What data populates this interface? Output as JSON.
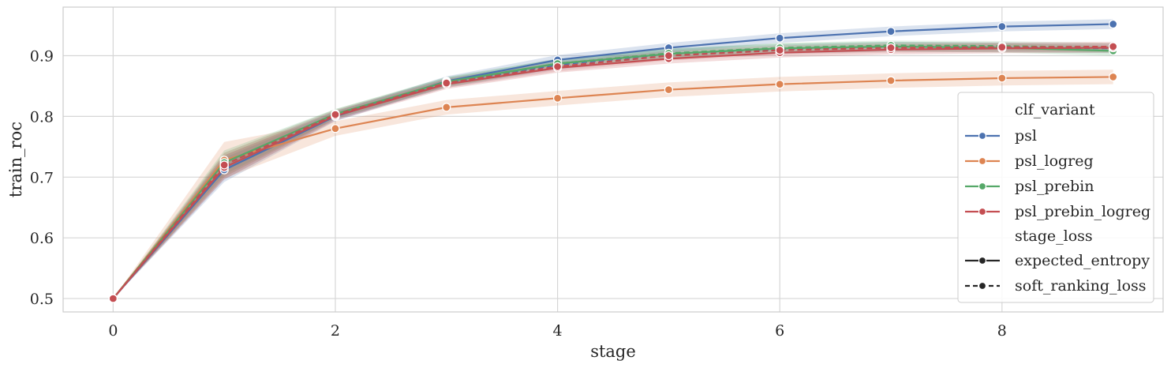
{
  "chart_data": {
    "type": "line",
    "xlabel": "stage",
    "ylabel": "train_roc",
    "xlim": [
      -0.45,
      9.45
    ],
    "ylim": [
      0.478,
      0.98
    ],
    "xticks": [
      0,
      2,
      4,
      6,
      8
    ],
    "xtick_labels": [
      "0",
      "2",
      "4",
      "6",
      "8"
    ],
    "yticks": [
      0.5,
      0.6,
      0.7,
      0.8,
      0.9
    ],
    "ytick_labels": [
      "0.5",
      "0.6",
      "0.7",
      "0.8",
      "0.9"
    ],
    "grid": true,
    "legend_position": "right",
    "legend": {
      "hue_title": "clf_variant",
      "style_title": "stage_loss",
      "style_entries": [
        {
          "label": "expected_entropy",
          "dash": "solid"
        },
        {
          "label": "soft_ranking_loss",
          "dash": "dashed"
        }
      ]
    },
    "x": [
      0,
      1,
      2,
      3,
      4,
      5,
      6,
      7,
      8,
      9
    ],
    "series": [
      {
        "name": "psl",
        "color": "#4c72b0",
        "values": [
          0.5,
          0.712,
          0.8,
          0.858,
          0.893,
          0.913,
          0.929,
          0.94,
          0.948,
          0.952
        ],
        "values_dashed": [
          0.5,
          0.716,
          0.802,
          0.855,
          0.885,
          0.903,
          0.911,
          0.915,
          0.914,
          0.912
        ],
        "band": 0.008
      },
      {
        "name": "psl_logreg",
        "color": "#dd8452",
        "values": [
          0.5,
          0.728,
          0.78,
          0.815,
          0.83,
          0.844,
          0.853,
          0.859,
          0.863,
          0.865
        ],
        "band": 0.012
      },
      {
        "name": "psl_prebin",
        "color": "#55a868",
        "values": [
          0.5,
          0.724,
          0.804,
          0.857,
          0.887,
          0.903,
          0.912,
          0.915,
          0.913,
          0.908
        ],
        "values_dashed": [
          0.5,
          0.72,
          0.804,
          0.856,
          0.887,
          0.904,
          0.913,
          0.917,
          0.916,
          0.913
        ],
        "band": 0.008
      },
      {
        "name": "psl_prebin_logreg",
        "color": "#c44e52",
        "values": [
          0.5,
          0.716,
          0.801,
          0.853,
          0.88,
          0.895,
          0.905,
          0.91,
          0.912,
          0.913
        ],
        "values_dashed": [
          0.5,
          0.72,
          0.803,
          0.855,
          0.882,
          0.9,
          0.909,
          0.913,
          0.914,
          0.915
        ],
        "band": 0.008
      }
    ]
  }
}
